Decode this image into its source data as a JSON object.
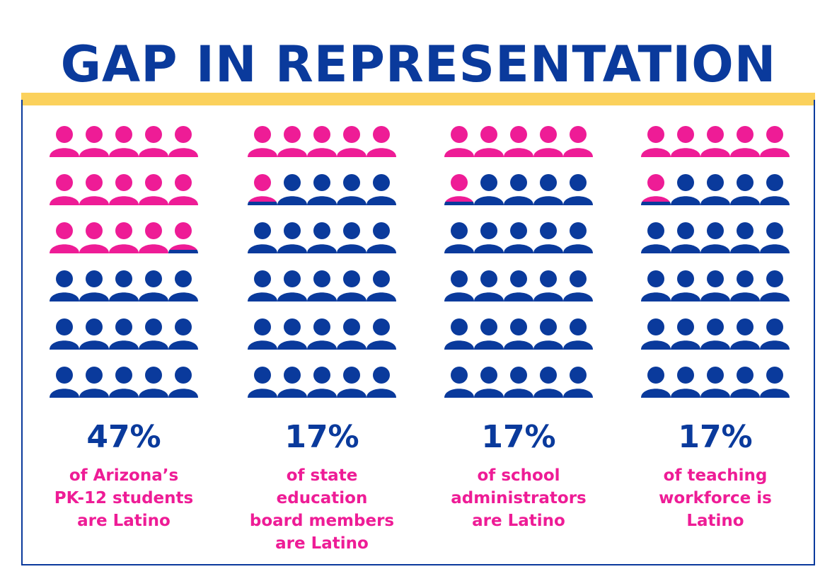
{
  "title": "GAP IN REPRESENTATION",
  "colors": {
    "latino": "#ee1c96",
    "other": "#0a3a9c",
    "accent_bar": "#fbd15c",
    "frame": "#0a3a9c"
  },
  "icon": "person-icon",
  "chart_data": {
    "type": "pictogram",
    "title": "GAP IN REPRESENTATION",
    "icons_per_panel": 30,
    "grid": {
      "rows": 6,
      "cols": 5
    },
    "series": [
      {
        "name": "PK-12 students",
        "value_percent": 47,
        "label": "47%",
        "description": [
          "of Arizona’s",
          "PK-12 students",
          "are Latino"
        ],
        "latino_icons": 14.1
      },
      {
        "name": "State education board members",
        "value_percent": 17,
        "label": "17%",
        "description": [
          "of state",
          "education",
          "board members",
          "are Latino"
        ],
        "latino_icons": 5.1
      },
      {
        "name": "School administrators",
        "value_percent": 17,
        "label": "17%",
        "description": [
          "of school",
          "administrators",
          "are Latino"
        ],
        "latino_icons": 5.1
      },
      {
        "name": "Teaching workforce",
        "value_percent": 17,
        "label": "17%",
        "description": [
          "of teaching",
          "workforce is",
          "Latino"
        ],
        "latino_icons": 5.1
      }
    ]
  }
}
